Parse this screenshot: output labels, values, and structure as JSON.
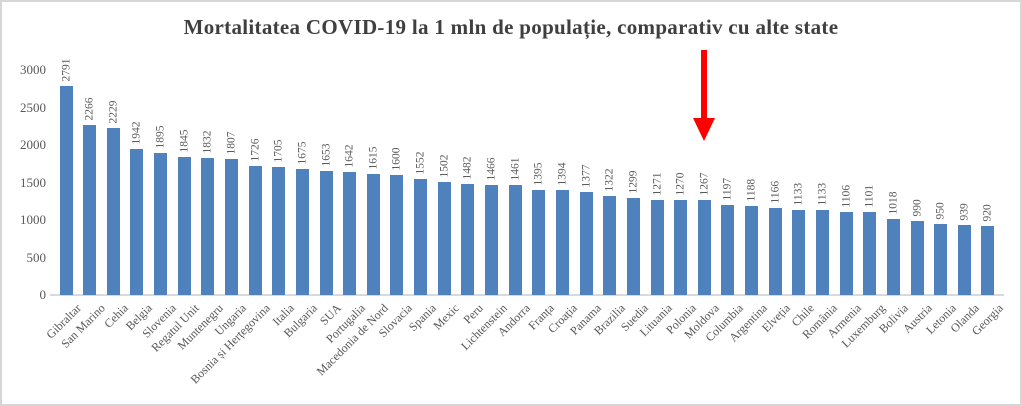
{
  "chart_data": {
    "type": "bar",
    "title": "Mortalitatea COVID-19 la 1 mln de populație, comparativ cu alte state",
    "xlabel": "",
    "ylabel": "",
    "categories": [
      "Gibraltar",
      "San Marino",
      "Cehia",
      "Belgia",
      "Slovenia",
      "Regatul Unit",
      "Muntenegru",
      "Ungaria",
      "Bosnia și Herțegovina",
      "Italia",
      "Bulgaria",
      "SUA",
      "Portugalia",
      "Macedonia de Nord",
      "Slovacia",
      "Spania",
      "Mexic",
      "Peru",
      "Lichtenstein",
      "Andorra",
      "Franța",
      "Croația",
      "Panama",
      "Brazilia",
      "Suedia",
      "Lituania",
      "Polonia",
      "Moldova",
      "Columbia",
      "Argentina",
      "Elveția",
      "Chile",
      "România",
      "Armenia",
      "Luxemburg",
      "Bolivia",
      "Austria",
      "Letonia",
      "Olanda",
      "Georgia"
    ],
    "values": [
      2791,
      2266,
      2229,
      1942,
      1895,
      1845,
      1832,
      1807,
      1726,
      1705,
      1675,
      1653,
      1642,
      1615,
      1600,
      1552,
      1502,
      1482,
      1466,
      1461,
      1395,
      1394,
      1377,
      1322,
      1299,
      1271,
      1270,
      1267,
      1197,
      1188,
      1166,
      1133,
      1133,
      1106,
      1101,
      1018,
      990,
      950,
      939,
      920
    ],
    "ylim": [
      0,
      3000
    ],
    "yticks": [
      0,
      500,
      1000,
      1500,
      2000,
      2500,
      3000
    ],
    "grid": false,
    "legend": false,
    "value_labels_rotation_deg": -90,
    "category_labels_rotation_deg": -45,
    "bar_color": "#4f81bd",
    "axis_text_color": "#595959",
    "title_color": "#3f3f3f",
    "axis_line_color": "#d9d9d9",
    "annotation": {
      "type": "arrow",
      "color": "#ff0000",
      "points_to_category": "Moldova"
    }
  }
}
